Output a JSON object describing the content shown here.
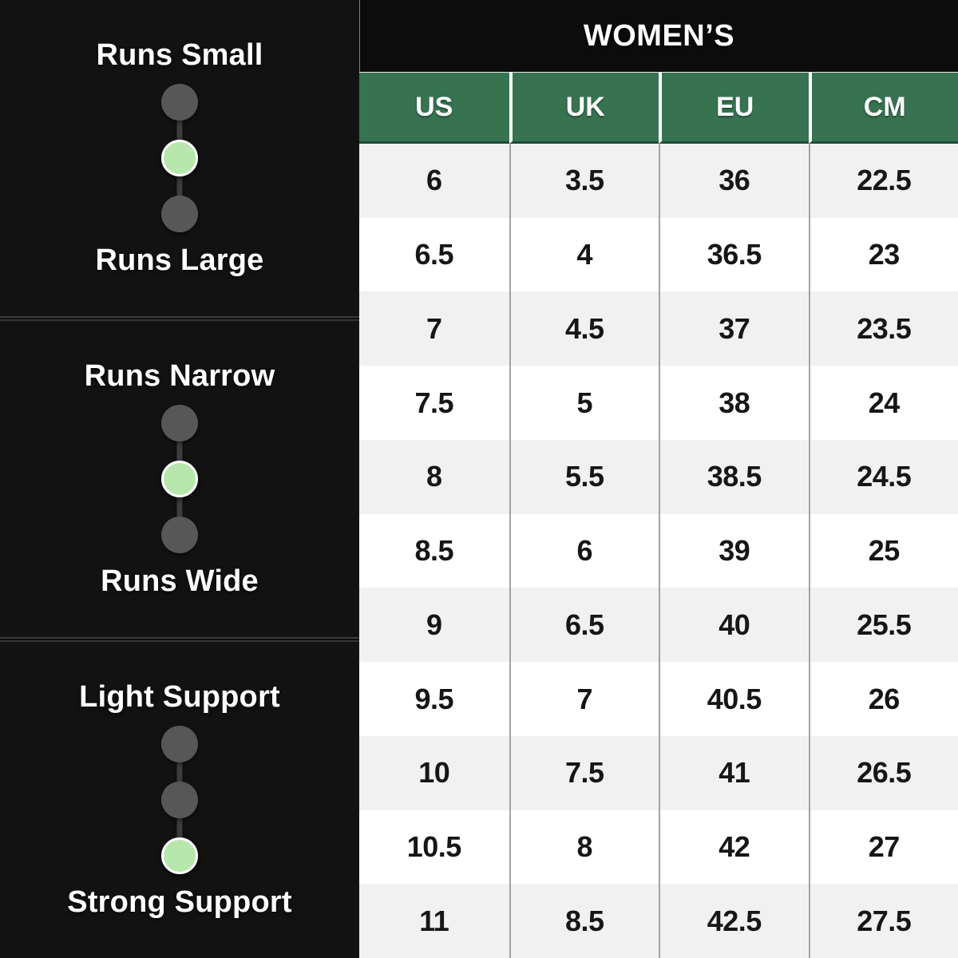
{
  "fit_scales": [
    {
      "top_label": "Runs Small",
      "bottom_label": "Runs Large",
      "selected": 1,
      "selected_position": "middle"
    },
    {
      "top_label": "Runs Narrow",
      "bottom_label": "Runs Wide",
      "selected": 1,
      "selected_position": "middle"
    },
    {
      "top_label": "Light Support",
      "bottom_label": "Strong Support",
      "selected": 2,
      "selected_position": "bottom"
    }
  ],
  "chart_data": {
    "type": "table",
    "title": "WOMEN’S",
    "columns": [
      "US",
      "UK",
      "EU",
      "CM"
    ],
    "rows": [
      [
        "6",
        "3.5",
        "36",
        "22.5"
      ],
      [
        "6.5",
        "4",
        "36.5",
        "23"
      ],
      [
        "7",
        "4.5",
        "37",
        "23.5"
      ],
      [
        "7.5",
        "5",
        "38",
        "24"
      ],
      [
        "8",
        "5.5",
        "38.5",
        "24.5"
      ],
      [
        "8.5",
        "6",
        "39",
        "25"
      ],
      [
        "9",
        "6.5",
        "40",
        "25.5"
      ],
      [
        "9.5",
        "7",
        "40.5",
        "26"
      ],
      [
        "10",
        "7.5",
        "41",
        "26.5"
      ],
      [
        "10.5",
        "8",
        "42",
        "27"
      ],
      [
        "11",
        "8.5",
        "42.5",
        "27.5"
      ]
    ],
    "layout": {
      "header_bg": "black",
      "alternating_rows": true,
      "grid": "vertical-separators"
    }
  },
  "colors": {
    "panel-bg": "#121212",
    "green-header": "#377351",
    "dot-green": "#b7e7ac",
    "dot-gray": "#575757",
    "row-alt": "#f1f1f1"
  }
}
